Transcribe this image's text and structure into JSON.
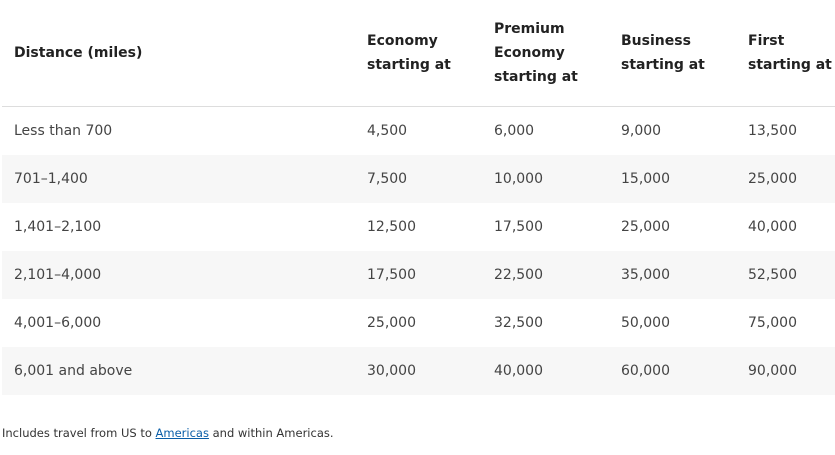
{
  "table": {
    "header": [
      [
        "Distance (miles)"
      ],
      [
        "Economy",
        "starting at"
      ],
      [
        "Premium",
        "Economy",
        "starting at"
      ],
      [
        "Business",
        "starting at"
      ],
      [
        "First",
        "starting at"
      ]
    ],
    "rows": [
      [
        "Less than 700",
        "4,500",
        "6,000",
        "9,000",
        "13,500"
      ],
      [
        "701–1,400",
        "7,500",
        "10,000",
        "15,000",
        "25,000"
      ],
      [
        "1,401–2,100",
        "12,500",
        "17,500",
        "25,000",
        "40,000"
      ],
      [
        "2,101–4,000",
        "17,500",
        "22,500",
        "35,000",
        "52,500"
      ],
      [
        "4,001–6,000",
        "25,000",
        "32,500",
        "50,000",
        "75,000"
      ],
      [
        "6,001 and above",
        "30,000",
        "40,000",
        "60,000",
        "90,000"
      ]
    ]
  },
  "footnote": {
    "before": "Includes travel from US to ",
    "link": "Americas",
    "after": " and within Americas."
  }
}
